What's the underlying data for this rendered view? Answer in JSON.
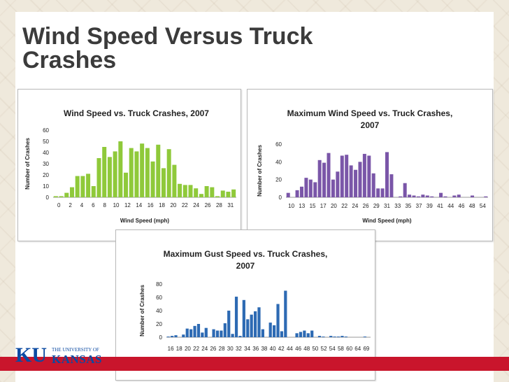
{
  "slide": {
    "title": "Wind Speed Versus Truck\nCrashes",
    "background_color": "#efe9dc",
    "accent_red": "#c9152c"
  },
  "logo": {
    "mark": "KU",
    "small_text": "THE UNIVERSITY OF",
    "big_text": "KANSAS",
    "color": "#0b4aa2"
  },
  "chart_data": [
    {
      "type": "bar",
      "title": "Wind Speed vs. Truck Crashes, 2007",
      "xlabel": "Wind Speed (mph)",
      "ylabel": "Number of Crashes",
      "ylim": [
        0,
        60
      ],
      "yticks": [
        0,
        10,
        20,
        30,
        40,
        50,
        60
      ],
      "grid": false,
      "legend": "none",
      "color": "#8fc93a",
      "x": [
        0,
        1,
        2,
        3,
        4,
        5,
        6,
        7,
        8,
        9,
        10,
        11,
        12,
        13,
        14,
        15,
        16,
        17,
        18,
        19,
        20,
        21,
        22,
        23,
        24,
        25,
        26,
        27,
        28,
        29,
        30,
        31,
        32,
        33
      ],
      "tick_labels": [
        "0",
        "2",
        "4",
        "6",
        "8",
        "10",
        "12",
        "14",
        "16",
        "18",
        "20",
        "22",
        "24",
        "26",
        "28",
        "31"
      ],
      "values": [
        1,
        1,
        4,
        9,
        19,
        19,
        21,
        10,
        35,
        45,
        36,
        41,
        50,
        22,
        44,
        41,
        48,
        44,
        32,
        47,
        26,
        43,
        29,
        12,
        11,
        11,
        8,
        3,
        10,
        9,
        1,
        6,
        5,
        7
      ]
    },
    {
      "type": "bar",
      "title": "Maximum Wind Speed vs. Truck Crashes,\n2007",
      "xlabel": "Wind Speed (mph)",
      "ylabel": "Number of Crashes",
      "ylim": [
        0,
        60
      ],
      "yticks": [
        0,
        20,
        40,
        60
      ],
      "grid": false,
      "legend": "none",
      "color": "#7a56a8",
      "x": [
        10,
        11,
        12,
        13,
        14,
        15,
        16,
        17,
        18,
        19,
        20,
        21,
        22,
        23,
        24,
        25,
        26,
        27,
        28,
        29,
        30,
        31,
        32,
        33,
        34,
        35,
        36,
        37,
        38,
        39,
        40,
        41,
        42,
        43,
        44,
        45,
        46,
        47,
        48,
        49,
        50,
        51,
        52,
        53,
        54
      ],
      "tick_labels": [
        "10",
        "13",
        "15",
        "17",
        "20",
        "22",
        "24",
        "26",
        "29",
        "31",
        "33",
        "35",
        "37",
        "39",
        "41",
        "44",
        "46",
        "48",
        "54"
      ],
      "values": [
        5,
        0,
        8,
        12,
        22,
        20,
        17,
        42,
        39,
        50,
        20,
        29,
        47,
        48,
        36,
        31,
        40,
        49,
        47,
        27,
        10,
        10,
        51,
        26,
        0,
        1,
        16,
        3,
        2,
        1,
        3,
        2,
        1,
        0,
        5,
        1,
        0,
        2,
        3,
        0,
        0,
        2,
        0,
        0,
        1
      ]
    },
    {
      "type": "bar",
      "title": "Maximum Gust Speed vs. Truck Crashes,\n2007",
      "xlabel": "Wind Speed (mph)",
      "ylabel": "Number of Crashes",
      "ylim": [
        0,
        80
      ],
      "yticks": [
        0,
        20,
        40,
        60,
        80
      ],
      "grid": false,
      "legend": "none",
      "color": "#2d6ab3",
      "x": [
        16,
        17,
        18,
        19,
        20,
        21,
        22,
        23,
        24,
        25,
        26,
        27,
        28,
        29,
        30,
        31,
        32,
        33,
        34,
        35,
        36,
        37,
        38,
        39,
        40,
        41,
        42,
        43,
        44,
        45,
        46,
        47,
        48,
        49,
        50,
        51,
        52,
        53,
        54,
        55,
        56,
        57,
        58,
        59,
        60,
        61,
        62,
        63,
        64,
        65,
        66,
        67,
        68,
        69
      ],
      "tick_labels": [
        "16",
        "18",
        "20",
        "22",
        "24",
        "26",
        "28",
        "30",
        "32",
        "34",
        "36",
        "38",
        "40",
        "42",
        "44",
        "46",
        "48",
        "50",
        "52",
        "54",
        "58",
        "60",
        "64",
        "69"
      ],
      "values": [
        1,
        2,
        3,
        0,
        4,
        13,
        12,
        17,
        20,
        7,
        14,
        0,
        12,
        10,
        10,
        21,
        40,
        5,
        61,
        2,
        56,
        27,
        34,
        39,
        45,
        12,
        0,
        22,
        18,
        50,
        9,
        70,
        0,
        0,
        6,
        8,
        10,
        6,
        10,
        0,
        2,
        1,
        0,
        2,
        1,
        1,
        2,
        1,
        0,
        0,
        0,
        0,
        1,
        0
      ]
    }
  ]
}
